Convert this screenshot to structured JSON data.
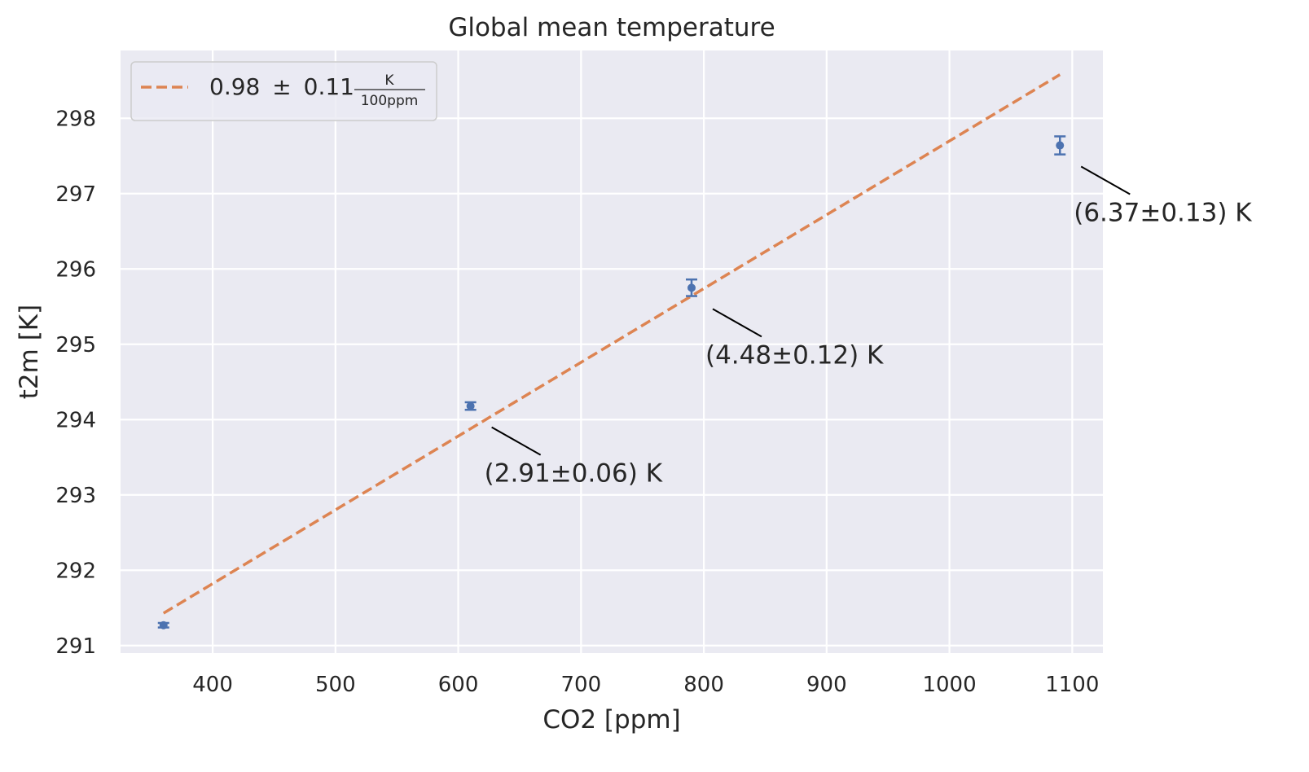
{
  "chart_data": {
    "type": "scatter",
    "title": "Global mean temperature",
    "xlabel": "CO2 [ppm]",
    "ylabel": "t2m [K]",
    "xlim": [
      325,
      1125
    ],
    "ylim": [
      290.9,
      298.9
    ],
    "xticks": [
      400,
      500,
      600,
      700,
      800,
      900,
      1000,
      1100
    ],
    "yticks": [
      291,
      292,
      293,
      294,
      295,
      296,
      297,
      298
    ],
    "grid": true,
    "legend_position": "top-left",
    "colors": {
      "points": "#4c72b0",
      "fit": "#dd8452",
      "background": "#eaeaf2",
      "grid": "#ffffff"
    },
    "series": [
      {
        "style": "errorbar",
        "x": [
          360,
          610,
          790,
          1090
        ],
        "y": [
          291.27,
          294.18,
          295.75,
          297.64
        ],
        "yerr": [
          0.03,
          0.05,
          0.11,
          0.12
        ]
      },
      {
        "name": "0.98 ± 0.11 K/100ppm",
        "style": "dashed-line",
        "x": [
          360,
          1090
        ],
        "y": [
          291.43,
          298.58
        ]
      }
    ],
    "legend": {
      "value": "0.98",
      "pm": "±",
      "err": "0.11",
      "unit_numerator": "K",
      "unit_denominator": "100ppm"
    },
    "annotations": [
      {
        "text": "(2.91±0.06) K",
        "x": 610,
        "y": 294.18
      },
      {
        "text": "(4.48±0.12) K",
        "x": 790,
        "y": 295.75
      },
      {
        "text": "(6.37±0.13) K",
        "x": 1090,
        "y": 297.64
      }
    ]
  }
}
